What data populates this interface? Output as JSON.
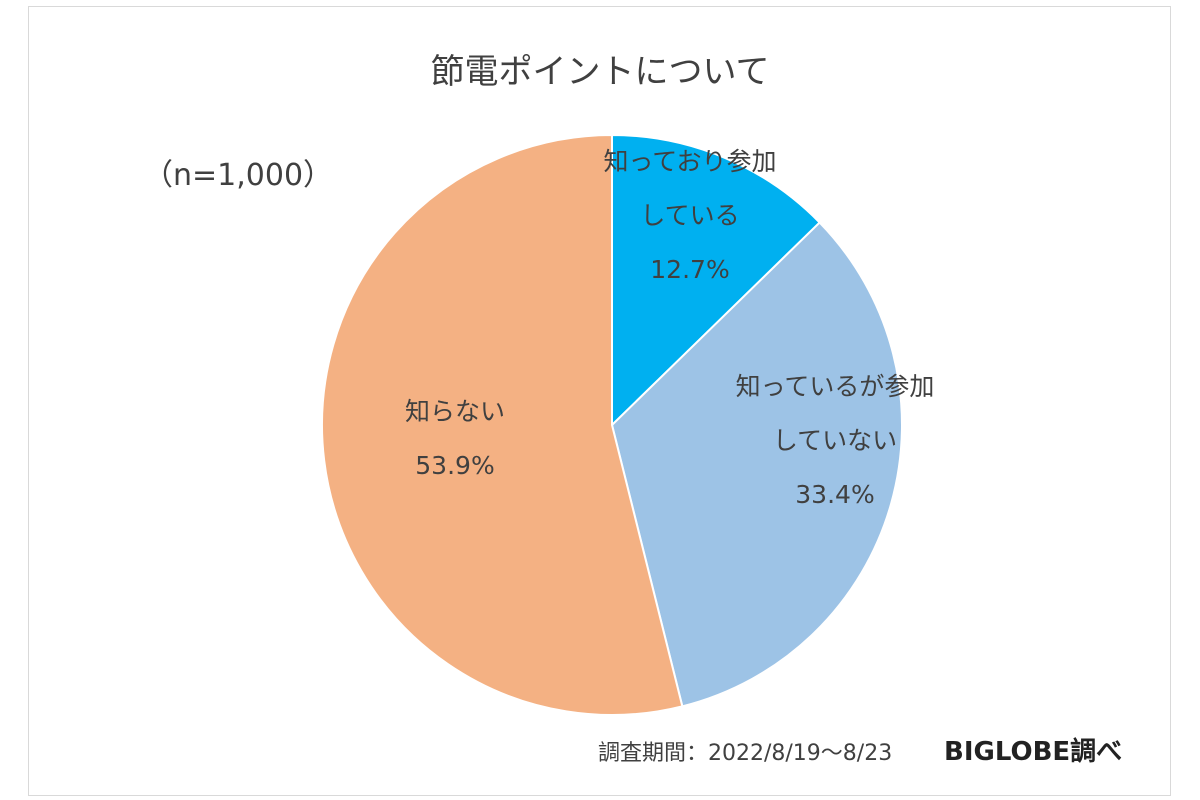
{
  "sample_note": "（n=1,000）",
  "footer": {
    "period": "調査期間：2022/8/19〜8/23",
    "credit": "BIGLOBE調べ"
  },
  "chart_data": {
    "type": "pie",
    "title": "節電ポイントについて",
    "unit": "%",
    "slices": [
      {
        "label_lines": [
          "知っており参加",
          "している"
        ],
        "value": 12.7,
        "value_text": "12.7%",
        "color": "#00b0f0"
      },
      {
        "label_lines": [
          "知っているが参加",
          "していない"
        ],
        "value": 33.4,
        "value_text": "33.4%",
        "color": "#9dc3e6"
      },
      {
        "label_lines": [
          "知らない"
        ],
        "value": 53.9,
        "value_text": "53.9%",
        "color": "#f4b183"
      }
    ],
    "start": "12 o'clock",
    "direction": "clockwise",
    "legend": "none"
  }
}
